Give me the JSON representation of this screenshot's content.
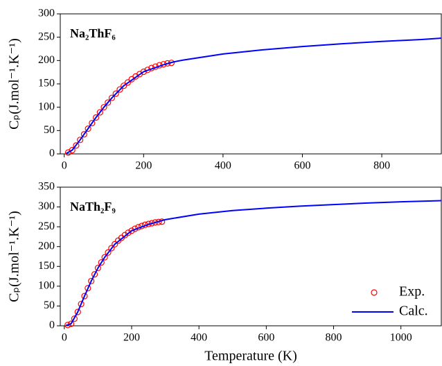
{
  "chart_data": [
    {
      "type": "line",
      "annotation": "Na₂ThF₆",
      "ylabel": "Cₚ(J.mol⁻¹.K⁻¹)",
      "xlim": [
        -10,
        950
      ],
      "xticks": [
        0,
        200,
        400,
        600,
        800
      ],
      "ylim": [
        0,
        300
      ],
      "yticks": [
        0,
        50,
        100,
        150,
        200,
        250,
        300
      ],
      "series": [
        {
          "mode": "markers",
          "color": "#ff0000",
          "x": [
            10,
            20,
            30,
            40,
            50,
            60,
            70,
            80,
            90,
            100,
            110,
            120,
            130,
            140,
            150,
            160,
            170,
            180,
            190,
            200,
            210,
            220,
            230,
            240,
            250,
            260,
            270
          ],
          "values": [
            3,
            8,
            18,
            30,
            42,
            54,
            66,
            78,
            89,
            100,
            110,
            120,
            129,
            138,
            146,
            153,
            160,
            166,
            171,
            176,
            180,
            184,
            187,
            190,
            192,
            194,
            195
          ]
        },
        {
          "mode": "lines",
          "color": "#0000ff",
          "x": [
            5,
            20,
            40,
            60,
            80,
            100,
            120,
            150,
            200,
            250,
            275,
            300,
            400,
            500,
            600,
            700,
            800,
            900,
            950
          ],
          "values": [
            1,
            8,
            30,
            54,
            78,
            100,
            120,
            146,
            176,
            191,
            197,
            201,
            214,
            223,
            230,
            236,
            241,
            245,
            248
          ]
        }
      ]
    },
    {
      "type": "line",
      "annotation": "NaTh₂F₉",
      "ylabel": "Cₚ(J.mol⁻¹.K⁻¹)",
      "xlabel": "Temperature (K)",
      "xlim": [
        -12,
        1120
      ],
      "xticks": [
        0,
        200,
        400,
        600,
        800,
        1000
      ],
      "ylim": [
        0,
        350
      ],
      "yticks": [
        0,
        50,
        100,
        150,
        200,
        250,
        300,
        350
      ],
      "series": [
        {
          "name": "Exp.",
          "mode": "markers",
          "color": "#ff0000",
          "x": [
            10,
            20,
            30,
            40,
            50,
            60,
            70,
            80,
            90,
            100,
            110,
            120,
            130,
            140,
            150,
            160,
            170,
            180,
            190,
            200,
            210,
            220,
            230,
            240,
            250,
            260,
            270,
            280,
            290
          ],
          "values": [
            2,
            5,
            18,
            35,
            55,
            75,
            95,
            113,
            130,
            146,
            160,
            173,
            185,
            196,
            206,
            215,
            222,
            229,
            235,
            240,
            245,
            249,
            252,
            255,
            257,
            259,
            261,
            262,
            263
          ]
        },
        {
          "name": "Calc.",
          "mode": "lines",
          "color": "#0000ff",
          "x": [
            5,
            20,
            40,
            60,
            80,
            100,
            120,
            150,
            200,
            250,
            300,
            400,
            500,
            600,
            700,
            800,
            900,
            1000,
            1120
          ],
          "values": [
            1,
            5,
            35,
            75,
            113,
            146,
            173,
            206,
            240,
            256,
            268,
            282,
            291,
            297,
            302,
            306,
            310,
            313,
            316
          ]
        }
      ]
    }
  ]
}
